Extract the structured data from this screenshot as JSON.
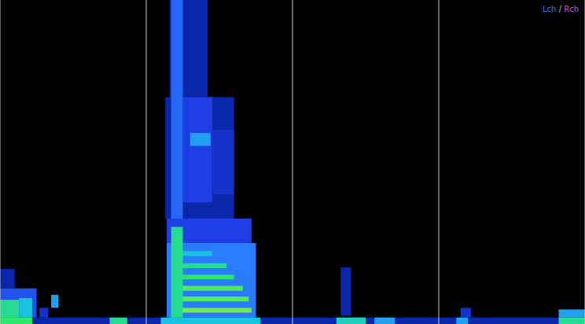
{
  "chart_data": {
    "type": "heatmap",
    "channels": [
      {
        "name": "Lch",
        "color": "#3d7bff"
      },
      {
        "name": "Rch",
        "color": "#e048c8"
      }
    ],
    "channel_separator": "/",
    "xlim": [
      0,
      4
    ],
    "xticks": [
      0,
      1,
      2,
      3,
      4
    ],
    "ylim": [
      0,
      20
    ],
    "yticks": [
      0,
      20
    ],
    "grid": "x",
    "tick_labels": false,
    "value_range": [
      0,
      1
    ],
    "cells": [
      {
        "x0": 0,
        "x1": 4,
        "y0": 0,
        "y1": 0.4,
        "value": 0.3
      },
      {
        "x0": 0,
        "x1": 0.22,
        "y0": 0,
        "y1": 0.4,
        "value": 0.8
      },
      {
        "x0": 0.75,
        "x1": 0.87,
        "y0": 0,
        "y1": 0.4,
        "value": 0.75
      },
      {
        "x0": 2.3,
        "x1": 2.5,
        "y0": 0,
        "y1": 0.4,
        "value": 0.7
      },
      {
        "x0": 2.56,
        "x1": 2.7,
        "y0": 0,
        "y1": 0.4,
        "value": 0.6
      },
      {
        "x0": 3.12,
        "x1": 3.2,
        "y0": 0,
        "y1": 0.4,
        "value": 0.6
      },
      {
        "x0": 3.82,
        "x1": 4,
        "y0": 0,
        "y1": 0.4,
        "value": 0.75
      },
      {
        "x0": 0,
        "x1": 0.1,
        "y0": 2.2,
        "y1": 3.4,
        "value": 0.3
      },
      {
        "x0": 0,
        "x1": 0.25,
        "y0": 0.4,
        "y1": 2.2,
        "value": 0.45
      },
      {
        "x0": 0,
        "x1": 0.13,
        "y0": 0.4,
        "y1": 1.5,
        "value": 0.75
      },
      {
        "x0": 0.13,
        "x1": 0.22,
        "y0": 0.4,
        "y1": 1.6,
        "value": 0.65
      },
      {
        "x0": 0.27,
        "x1": 0.33,
        "y0": 0.4,
        "y1": 1.0,
        "value": 0.35
      },
      {
        "x0": 0.35,
        "x1": 0.4,
        "y0": 1.0,
        "y1": 1.8,
        "value": 0.6
      },
      {
        "x0": 1.16,
        "x1": 1.42,
        "y0": 14,
        "y1": 20,
        "value": 0.3
      },
      {
        "x0": 1.13,
        "x1": 1.6,
        "y0": 6.5,
        "y1": 14,
        "value": 0.3
      },
      {
        "x0": 1.25,
        "x1": 1.45,
        "y0": 7.5,
        "y1": 14,
        "value": 0.4
      },
      {
        "x0": 1.45,
        "x1": 1.6,
        "y0": 8,
        "y1": 12,
        "value": 0.35
      },
      {
        "x0": 1.3,
        "x1": 1.44,
        "y0": 11,
        "y1": 11.8,
        "value": 0.6
      },
      {
        "x0": 1.17,
        "x1": 1.25,
        "y0": 6,
        "y1": 20,
        "value": 0.5
      },
      {
        "x0": 1.14,
        "x1": 1.72,
        "y0": 5,
        "y1": 6.5,
        "value": 0.4
      },
      {
        "x0": 1.14,
        "x1": 1.75,
        "y0": 0.4,
        "y1": 5,
        "value": 0.55
      },
      {
        "x0": 1.22,
        "x1": 1.72,
        "y0": 0.7,
        "y1": 1.0,
        "value": 0.9
      },
      {
        "x0": 1.22,
        "x1": 1.7,
        "y0": 1.4,
        "y1": 1.7,
        "value": 0.85
      },
      {
        "x0": 1.22,
        "x1": 1.66,
        "y0": 2.05,
        "y1": 2.35,
        "value": 0.85
      },
      {
        "x0": 1.22,
        "x1": 1.6,
        "y0": 2.75,
        "y1": 3.05,
        "value": 0.8
      },
      {
        "x0": 1.22,
        "x1": 1.55,
        "y0": 3.45,
        "y1": 3.75,
        "value": 0.75
      },
      {
        "x0": 1.22,
        "x1": 1.45,
        "y0": 4.2,
        "y1": 4.5,
        "value": 0.65
      },
      {
        "x0": 1.17,
        "x1": 1.25,
        "y0": 0.4,
        "y1": 6,
        "value": 0.75
      },
      {
        "x0": 1.1,
        "x1": 1.78,
        "y0": 0,
        "y1": 0.4,
        "value": 0.65
      },
      {
        "x0": 2.33,
        "x1": 2.4,
        "y0": 0.5,
        "y1": 3.5,
        "value": 0.3
      },
      {
        "x0": 3.15,
        "x1": 3.22,
        "y0": 0.4,
        "y1": 1.0,
        "value": 0.35
      },
      {
        "x0": 3.82,
        "x1": 4,
        "y0": 0.4,
        "y1": 0.9,
        "value": 0.6
      }
    ]
  }
}
